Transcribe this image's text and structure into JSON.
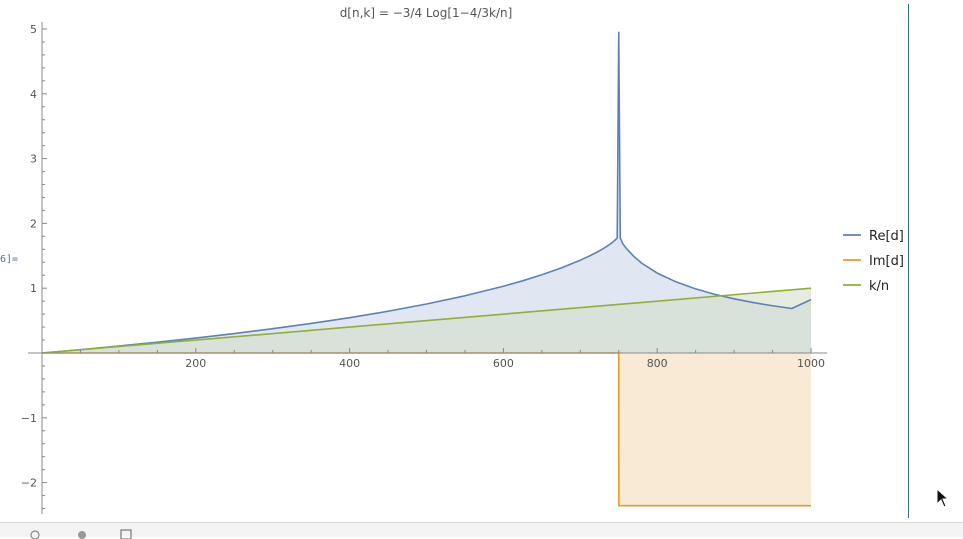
{
  "cell_label": "6]=",
  "chart_data": {
    "type": "area",
    "title": "d[n,k] = −3/4 Log[1−4/3k/n]",
    "xlim": [
      0,
      1000
    ],
    "ylim": [
      -2.5,
      5
    ],
    "x_ticks": [
      200,
      400,
      600,
      800,
      1000
    ],
    "x_tick_labels": [
      "200",
      "400",
      "600",
      "800",
      "1000"
    ],
    "y_ticks": [
      -2,
      -1,
      1,
      2,
      3,
      4,
      5
    ],
    "y_tick_labels": [
      "−2",
      "−1",
      "1",
      "2",
      "3",
      "4",
      "5"
    ],
    "legend_position": "right",
    "series": [
      {
        "name": "Re[d]",
        "color": "#5e81b5",
        "fill": "#dfe6f1",
        "x": [
          0,
          50,
          100,
          150,
          200,
          250,
          300,
          350,
          400,
          450,
          500,
          550,
          600,
          625,
          650,
          675,
          700,
          710,
          720,
          730,
          735,
          740,
          745,
          748,
          750,
          752,
          755,
          760,
          770,
          780,
          800,
          825,
          850,
          875,
          900,
          925,
          950,
          975,
          1000
        ],
        "values": [
          0,
          0.052,
          0.108,
          0.167,
          0.231,
          0.3,
          0.375,
          0.456,
          0.545,
          0.644,
          0.756,
          0.883,
          1.03,
          1.114,
          1.207,
          1.312,
          1.432,
          1.486,
          1.545,
          1.612,
          1.65,
          1.691,
          1.739,
          1.775,
          4.95,
          1.775,
          1.691,
          1.612,
          1.486,
          1.385,
          1.233,
          1.095,
          0.99,
          0.905,
          0.836,
          0.778,
          0.729,
          0.687,
          0.824
        ]
      },
      {
        "name": "Im[d]",
        "color": "#e19c24",
        "fill": "#f8e9d3",
        "x": [
          0,
          750,
          750.1,
          1000
        ],
        "values": [
          0,
          0,
          -2.356,
          -2.356
        ]
      },
      {
        "name": "k/n",
        "color": "#8fb032",
        "fill": "#d2ddc7",
        "x": [
          0,
          1000
        ],
        "values": [
          0,
          1
        ]
      }
    ]
  }
}
